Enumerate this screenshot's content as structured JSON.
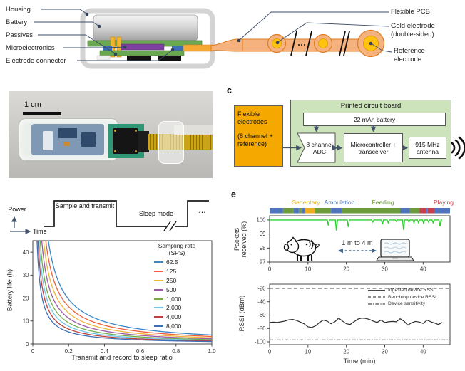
{
  "schematic": {
    "left_labels": [
      "Housing",
      "Battery",
      "Passives",
      "Microelectronics",
      "Electrode connector"
    ],
    "right_labels": [
      "Flexible PCB",
      "Gold electrode (double-sided)",
      "Reference electrode"
    ]
  },
  "photo": {
    "scale_label": "1 cm"
  },
  "block_diagram": {
    "letter": "c",
    "electrodes_title": "Flexible electrodes",
    "electrodes_sub": "(8 channel + reference)",
    "pcb_title": "Printed circuit board",
    "battery_label": "22 mAh battery",
    "adc_label": "8 channel ADC",
    "mcu_label": "Microcontroller + transceiver",
    "antenna_label": "915 MHz antenna",
    "colors": {
      "electrodes_fill": "#F5A800",
      "pcb_fill": "#CDE3BC"
    }
  },
  "timing": {
    "power_label": "Power",
    "time_label": "Time",
    "high_label": "Sample and transmit",
    "low_label": "Sleep mode",
    "continuation": "..."
  },
  "panel_e": {
    "letter": "e",
    "distance_label": "1 m to 4 m",
    "activities": [
      {
        "label": "Sedentary",
        "color": "#EDAD22"
      },
      {
        "label": "Ambulation",
        "color": "#4F74BE"
      },
      {
        "label": "Feeding",
        "color": "#6E9B3D"
      },
      {
        "label": "Playing",
        "color": "#C5404A"
      }
    ]
  },
  "chart_data": [
    {
      "id": "battery_life",
      "type": "line",
      "xlabel": "Transmit and record to sleep ratio",
      "ylabel": "Battery life (h)",
      "xlim": [
        0,
        1.0
      ],
      "ylim": [
        0,
        45
      ],
      "xticks": [
        0,
        0.2,
        0.4,
        0.6,
        0.8,
        1.0
      ],
      "xtick_labels": [
        "0",
        "0.2",
        "0.4",
        "0.6",
        "0.8",
        "1.0"
      ],
      "yticks": [
        0,
        10,
        20,
        30,
        40
      ],
      "ytick_labels": [
        "0",
        "10",
        "20",
        "30",
        "40"
      ],
      "legend_title_lines": [
        "Sampling rate",
        "(SPS)"
      ],
      "model": "battery_life_h = k / duty_ratio, curves clipped at plot top",
      "series": [
        {
          "name": "62.5",
          "color": "#3A87C8",
          "k": 3.9
        },
        {
          "name": "125",
          "color": "#EF5F3C",
          "k": 3.25
        },
        {
          "name": "250",
          "color": "#EDB63B",
          "k": 2.7
        },
        {
          "name": "500",
          "color": "#9C5BA4",
          "k": 2.25
        },
        {
          "name": "1,000",
          "color": "#72AD49",
          "k": 1.85
        },
        {
          "name": "2,000",
          "color": "#6FC5EC",
          "k": 1.55
        },
        {
          "name": "4,000",
          "color": "#BE3F3F",
          "k": 1.3
        },
        {
          "name": "8,000",
          "color": "#3E6FB6",
          "k": 1.05
        }
      ]
    },
    {
      "id": "packets_received",
      "type": "line",
      "ylabel": "Packets received (%)",
      "xlim": [
        0,
        47
      ],
      "ylim": [
        97,
        100.3
      ],
      "xticks": [
        0,
        10,
        20,
        30,
        40
      ],
      "xtick_labels": [
        "0",
        "10",
        "20",
        "30",
        "40"
      ],
      "yticks": [
        97,
        98,
        99,
        100
      ],
      "ytick_labels": [
        "97",
        "98",
        "99",
        "100"
      ],
      "line_color": "#2FCE2F",
      "baseline_pct": 100,
      "dips": [
        [
          15.3,
          99.6
        ],
        [
          17.4,
          99.25
        ],
        [
          20.5,
          99.5
        ],
        [
          26.9,
          99.85
        ],
        [
          29.4,
          99.7
        ],
        [
          30.9,
          99.8
        ],
        [
          33.0,
          99.9
        ],
        [
          34.9,
          99.3
        ],
        [
          36.3,
          99.85
        ],
        [
          37.6,
          99.8
        ],
        [
          38.8,
          99.8
        ],
        [
          40.1,
          99.78
        ],
        [
          41.4,
          99.85
        ],
        [
          42.6,
          99.8
        ],
        [
          44.4,
          99.55
        ]
      ],
      "activity_segments": [
        {
          "start": 0,
          "end": 3.5,
          "activity": "Ambulation"
        },
        {
          "start": 3.5,
          "end": 6.3,
          "activity": "Feeding"
        },
        {
          "start": 6.3,
          "end": 7.6,
          "activity": "Ambulation"
        },
        {
          "start": 7.6,
          "end": 8.3,
          "activity": "Feeding"
        },
        {
          "start": 8.3,
          "end": 9.2,
          "activity": "Ambulation"
        },
        {
          "start": 9.2,
          "end": 11.8,
          "activity": "Sedentary"
        },
        {
          "start": 11.8,
          "end": 16.0,
          "activity": "Feeding"
        },
        {
          "start": 16.0,
          "end": 18.8,
          "activity": "Ambulation"
        },
        {
          "start": 18.8,
          "end": 34.0,
          "activity": "Feeding"
        },
        {
          "start": 34.0,
          "end": 36.5,
          "activity": "Ambulation"
        },
        {
          "start": 36.5,
          "end": 39.1,
          "activity": "Feeding"
        },
        {
          "start": 39.1,
          "end": 40.7,
          "activity": "Playing"
        },
        {
          "start": 40.7,
          "end": 41.2,
          "activity": "Ambulation"
        },
        {
          "start": 41.2,
          "end": 42.9,
          "activity": "Playing"
        },
        {
          "start": 42.9,
          "end": 47,
          "activity": "Ambulation"
        }
      ]
    },
    {
      "id": "rssi",
      "type": "line",
      "xlabel": "Time (min)",
      "ylabel": "RSSI (dBm)",
      "xlim": [
        0,
        47
      ],
      "ylim": [
        -104,
        -16
      ],
      "xticks": [
        0,
        10,
        20,
        30,
        40
      ],
      "xtick_labels": [
        "0",
        "10",
        "20",
        "30",
        "40"
      ],
      "yticks": [
        -20,
        -40,
        -60,
        -80,
        -100
      ],
      "ytick_labels": [
        "-20",
        "-40",
        "-60",
        "-80",
        "-100"
      ],
      "series": [
        {
          "name": "Ingested device RSSI",
          "style": "solid",
          "color": "#2B2B2B",
          "x": [
            0,
            1,
            2,
            3,
            4,
            5,
            6,
            7,
            8,
            9,
            10,
            11,
            12,
            13,
            14,
            15,
            16,
            17,
            18,
            19,
            20,
            21,
            22,
            23,
            24,
            25,
            26,
            27,
            28,
            29,
            30,
            31,
            32,
            33,
            34,
            35,
            36,
            37,
            38,
            39,
            40,
            41,
            42,
            43,
            44,
            45
          ],
          "y": [
            -71,
            -70.5,
            -71,
            -70,
            -69,
            -67,
            -66.5,
            -68,
            -70.5,
            -73,
            -77.5,
            -78.5,
            -76,
            -71,
            -67.5,
            -69,
            -73,
            -70,
            -64.5,
            -69,
            -73,
            -74,
            -70,
            -66,
            -64.5,
            -65,
            -66.5,
            -69,
            -71,
            -67.5,
            -71,
            -70,
            -69.5,
            -70,
            -65.5,
            -69,
            -75,
            -71.5,
            -69.5,
            -70.5,
            -72.5,
            -67.5,
            -70,
            -72,
            -74,
            -71
          ]
        },
        {
          "name": "Benchtop device RSSI",
          "style": "dashed",
          "color": "#4A4A4A",
          "value": -20
        },
        {
          "name": "Device sensitivity",
          "style": "dashdot",
          "color": "#4A4A4A",
          "value": -97
        }
      ]
    }
  ]
}
